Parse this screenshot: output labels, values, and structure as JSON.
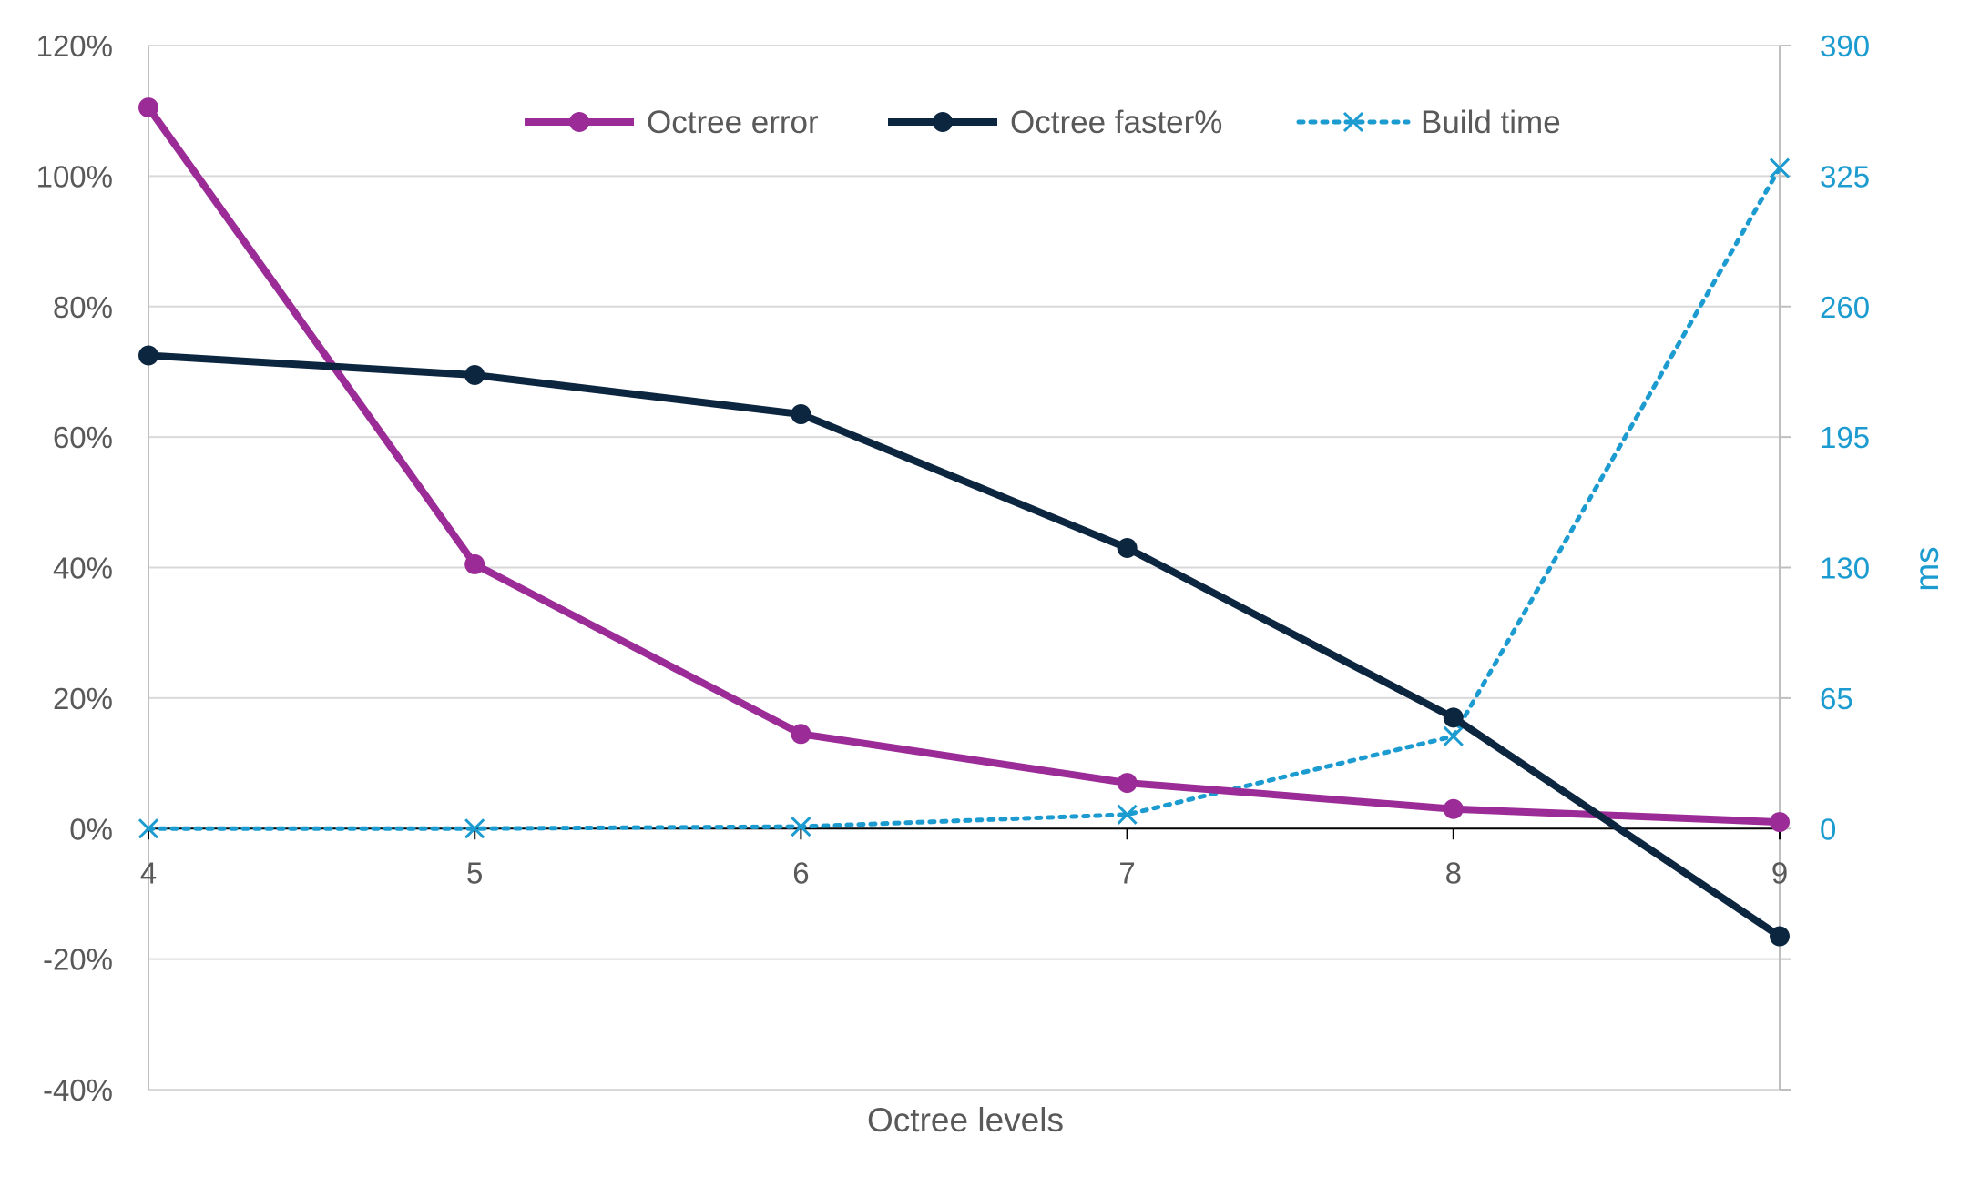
{
  "chart_data": {
    "type": "line",
    "title": "",
    "xlabel": "Octree levels",
    "ylabel": "",
    "y2label": "ms",
    "x": [
      4,
      5,
      6,
      7,
      8,
      9
    ],
    "x_tick_labels": [
      "4",
      "5",
      "6",
      "7",
      "8",
      "9"
    ],
    "ylim": [
      -40,
      120
    ],
    "y_ticks": [
      -40,
      -20,
      0,
      20,
      40,
      60,
      80,
      100,
      120
    ],
    "y_tick_labels": [
      "-40%",
      "-20%",
      "0%",
      "20%",
      "40%",
      "60%",
      "80%",
      "100%",
      "120%"
    ],
    "y2lim": [
      -130,
      390
    ],
    "y2_ticks": [
      0,
      65,
      130,
      195,
      260,
      325,
      390
    ],
    "y2_tick_labels": [
      "0",
      "65",
      "130",
      "195",
      "260",
      "325",
      "390"
    ],
    "grid": true,
    "legend_position": "top-center",
    "series": [
      {
        "name": "Octree error",
        "axis": "left",
        "color": "#9b2b96",
        "style": "solid",
        "marker": "circle",
        "values": [
          110.5,
          40.5,
          14.5,
          7,
          3,
          1
        ]
      },
      {
        "name": "Octree faster%",
        "axis": "left",
        "color": "#0d2640",
        "style": "solid",
        "marker": "circle",
        "values": [
          72.5,
          69.5,
          63.5,
          43,
          17,
          -16.5
        ]
      },
      {
        "name": "Build time",
        "axis": "right",
        "color": "#1b9bcf",
        "style": "dotted",
        "marker": "x",
        "values": [
          0,
          0,
          1,
          7,
          46,
          329
        ]
      }
    ]
  }
}
